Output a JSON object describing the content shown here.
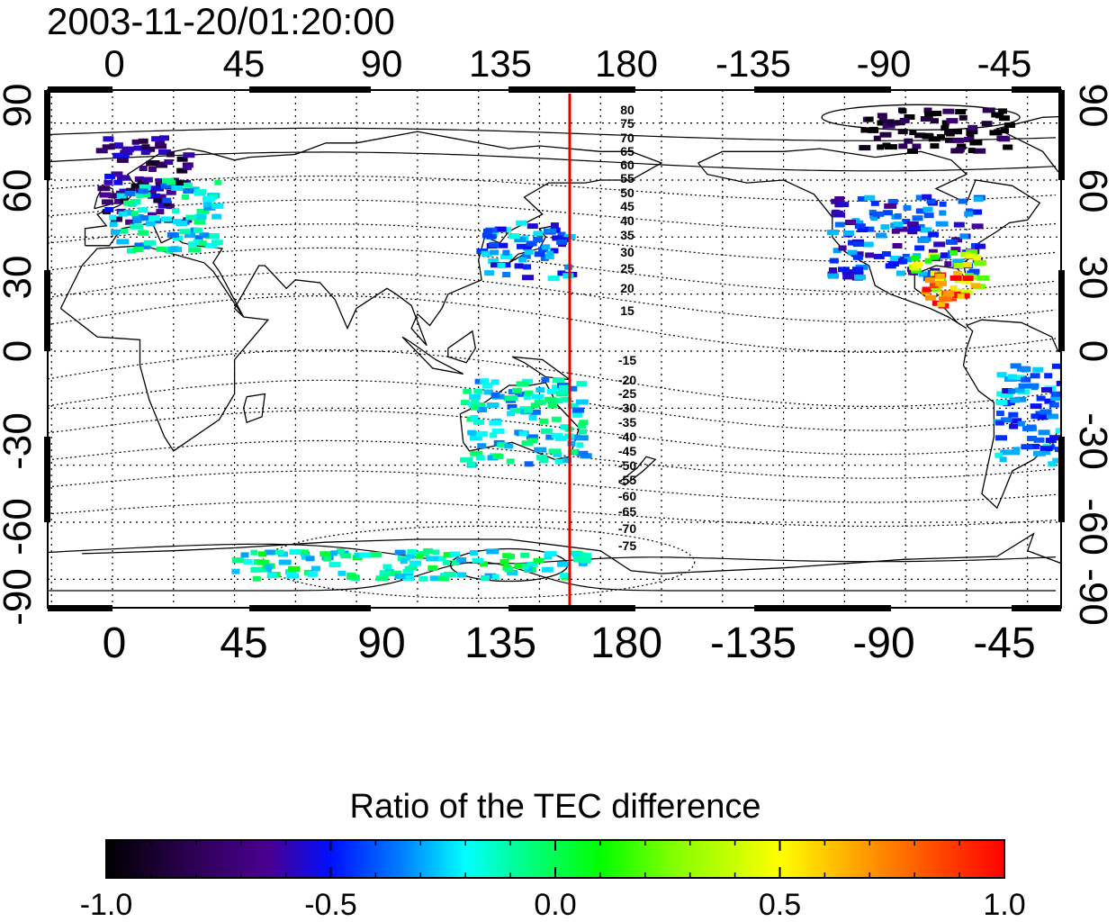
{
  "title": "2003-11-20/01:20:00",
  "top_lon_ticks": [
    "0",
    "45",
    "90",
    "135",
    "180",
    "-135",
    "-90",
    "-45"
  ],
  "bottom_lon_ticks": [
    "0",
    "45",
    "90",
    "135",
    "180",
    "-135",
    "-90",
    "-45"
  ],
  "left_lat_ticks": [
    "90",
    "60",
    "30",
    "0",
    "-30",
    "-60",
    "-90"
  ],
  "right_lat_ticks": [
    "90",
    "60",
    "30",
    "0",
    "-30",
    "-60",
    "-90"
  ],
  "contour_labels_north": [
    "80",
    "75",
    "70",
    "65",
    "60",
    "55",
    "50",
    "45",
    "40",
    "35",
    "30",
    "25",
    "20",
    "15"
  ],
  "contour_labels_south": [
    "-15",
    "-20",
    "-25",
    "-30",
    "-35",
    "-40",
    "-45",
    "-50",
    "-55",
    "-60",
    "-65",
    "-70",
    "-75"
  ],
  "colorbar": {
    "title": "Ratio of the TEC difference",
    "tick_labels": [
      "-1.0",
      "-0.5",
      "0.0",
      "0.5",
      "1.0"
    ],
    "ticks": [
      -1.0,
      -0.5,
      0.0,
      0.5,
      1.0
    ],
    "range": [
      -1.0,
      1.0
    ]
  },
  "colors": {
    "terminator_line": "#e00000",
    "frame": "#000000",
    "colormap": [
      "#000000",
      "#2a0050",
      "#4a0090",
      "#0010ff",
      "#0080ff",
      "#00ffff",
      "#00ff80",
      "#00ff00",
      "#80ff00",
      "#ffff00",
      "#ff8000",
      "#ff0000"
    ]
  },
  "chart_data": {
    "type": "heatmap",
    "title": "2003-11-20/01:20:00",
    "xlabel": "",
    "ylabel": "",
    "x_ticks": [
      0,
      45,
      90,
      135,
      180,
      -135,
      -90,
      -45
    ],
    "y_ticks": [
      90,
      60,
      30,
      0,
      -30,
      -60,
      -90
    ],
    "ylim": [
      -90,
      90
    ],
    "terminator_longitude": 160,
    "value_range": [
      -1.0,
      1.0
    ],
    "regions": [
      {
        "lon": [
          -5,
          25
        ],
        "lat": [
          45,
          75
        ],
        "value": -0.7
      },
      {
        "lon": [
          0,
          35
        ],
        "lat": [
          35,
          60
        ],
        "value": -0.1
      },
      {
        "lon": [
          -125,
          -75
        ],
        "lat": [
          25,
          55
        ],
        "value": -0.4
      },
      {
        "lon": [
          -100,
          -75
        ],
        "lat": [
          20,
          35
        ],
        "value": 0.5
      },
      {
        "lon": [
          -95,
          -80
        ],
        "lat": [
          15,
          28
        ],
        "value": 0.9
      },
      {
        "lon": [
          -115,
          -65
        ],
        "lat": [
          70,
          85
        ],
        "value": -0.95
      },
      {
        "lon": [
          120,
          150
        ],
        "lat": [
          25,
          45
        ],
        "value": -0.3
      },
      {
        "lon": [
          115,
          155
        ],
        "lat": [
          -40,
          -10
        ],
        "value": -0.1
      },
      {
        "lon": [
          -70,
          -40
        ],
        "lat": [
          -40,
          -5
        ],
        "value": -0.3
      },
      {
        "lon": [
          40,
          160
        ],
        "lat": [
          -80,
          -70
        ],
        "value": 0.0
      }
    ]
  }
}
